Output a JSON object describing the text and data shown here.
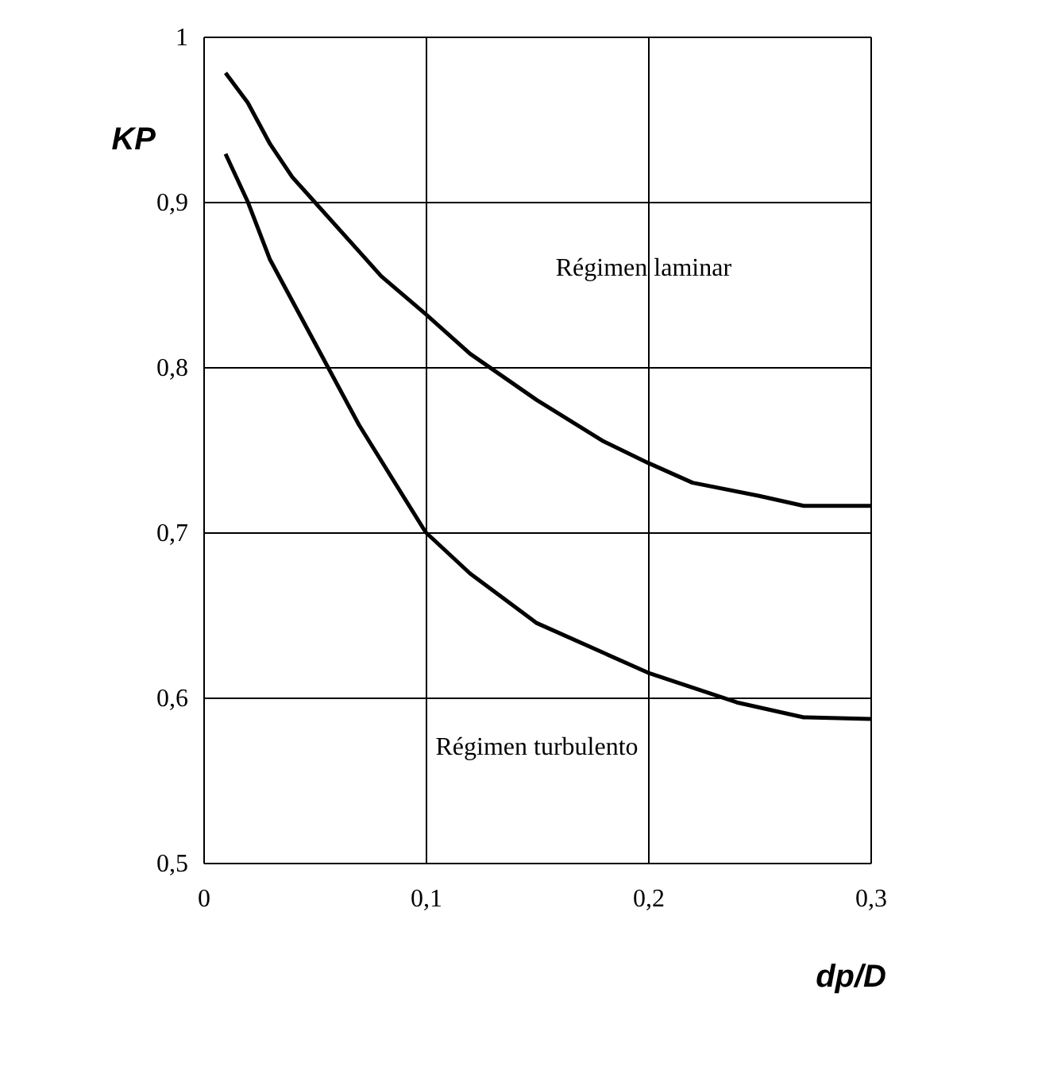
{
  "chart_data": {
    "type": "line",
    "xlabel": "dp/D",
    "ylabel": "KP",
    "xlim": [
      0,
      0.3
    ],
    "xticks": [
      {
        "value": 0,
        "label": "0"
      },
      {
        "value": 0.1,
        "label": "0,1"
      },
      {
        "value": 0.2,
        "label": "0,2"
      },
      {
        "value": 0.3,
        "label": "0,3"
      }
    ],
    "ylim": [
      0.5,
      1
    ],
    "yticks": [
      {
        "value": 0.5,
        "label": "0,5"
      },
      {
        "value": 0.6,
        "label": "0,6"
      },
      {
        "value": 0.7,
        "label": "0,7"
      },
      {
        "value": 0.8,
        "label": "0,8"
      },
      {
        "value": 0.9,
        "label": "0,9"
      },
      {
        "value": 1,
        "label": "1"
      }
    ],
    "grid": true,
    "marker": "none",
    "line_style": "solid",
    "series": [
      {
        "color": "#000000",
        "x": [
          0.01,
          0.02,
          0.03,
          0.04,
          0.05,
          0.07,
          0.08,
          0.1,
          0.12,
          0.15,
          0.18,
          0.2,
          0.22,
          0.25,
          0.27,
          0.3
        ],
        "values": [
          0.978,
          0.96,
          0.935,
          0.915,
          0.9,
          0.87,
          0.855,
          0.832,
          0.808,
          0.78,
          0.755,
          0.742,
          0.73,
          0.722,
          0.716,
          0.716
        ]
      },
      {
        "color": "#000000",
        "x": [
          0.01,
          0.02,
          0.03,
          0.05,
          0.07,
          0.1,
          0.12,
          0.15,
          0.18,
          0.2,
          0.24,
          0.27,
          0.3
        ],
        "values": [
          0.929,
          0.9,
          0.865,
          0.815,
          0.765,
          0.7,
          0.675,
          0.645,
          0.627,
          0.615,
          0.597,
          0.588,
          0.587
        ]
      }
    ],
    "annotations": [
      "Régimen laminar",
      "Régimen turbulento"
    ]
  }
}
